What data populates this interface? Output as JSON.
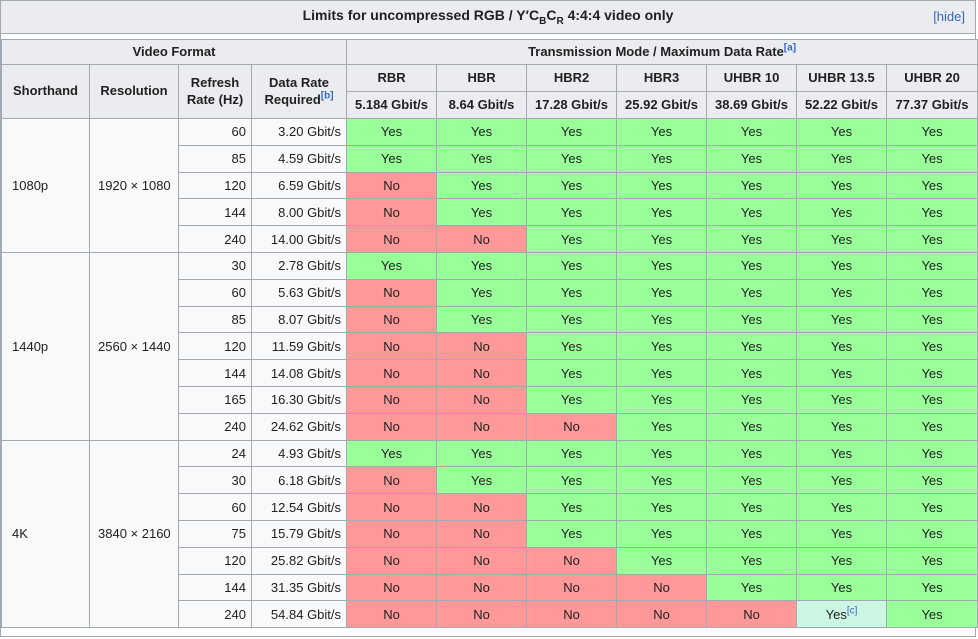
{
  "title": {
    "text_pre": "Limits for uncompressed RGB / Y′C",
    "sub_b": "B",
    "text_mid": "C",
    "sub_r": "R",
    "text_post": " 4:4:4 video only",
    "hide_label": "[hide]"
  },
  "header": {
    "video_format_label": "Video Format",
    "transmission_label": "Transmission Mode / Maximum Data Rate",
    "transmission_footnote": "[a]",
    "shorthand_label": "Shorthand",
    "resolution_label": "Resolution",
    "refresh_label": "Refresh Rate (Hz)",
    "data_rate_label": "Data Rate Required",
    "data_rate_footnote": "[b]",
    "modes": [
      {
        "name": "RBR",
        "max_rate": "5.184 Gbit/s"
      },
      {
        "name": "HBR",
        "max_rate": "8.64 Gbit/s"
      },
      {
        "name": "HBR2",
        "max_rate": "17.28 Gbit/s"
      },
      {
        "name": "HBR3",
        "max_rate": "25.92 Gbit/s"
      },
      {
        "name": "UHBR 10",
        "max_rate": "38.69 Gbit/s"
      },
      {
        "name": "UHBR 13.5",
        "max_rate": "52.22 Gbit/s"
      },
      {
        "name": "UHBR 20",
        "max_rate": "77.37 Gbit/s"
      }
    ]
  },
  "cell_labels": {
    "yes": "Yes",
    "no": "No",
    "footnote_c": "[c]"
  },
  "groups": [
    {
      "shorthand": "1080p",
      "resolution": "1920 × 1080",
      "rows": [
        {
          "refresh": "60",
          "required": "3.20 Gbit/s",
          "support": [
            "yes",
            "yes",
            "yes",
            "yes",
            "yes",
            "yes",
            "yes"
          ]
        },
        {
          "refresh": "85",
          "required": "4.59 Gbit/s",
          "support": [
            "yes",
            "yes",
            "yes",
            "yes",
            "yes",
            "yes",
            "yes"
          ]
        },
        {
          "refresh": "120",
          "required": "6.59 Gbit/s",
          "support": [
            "no",
            "yes",
            "yes",
            "yes",
            "yes",
            "yes",
            "yes"
          ]
        },
        {
          "refresh": "144",
          "required": "8.00 Gbit/s",
          "support": [
            "no",
            "yes",
            "yes",
            "yes",
            "yes",
            "yes",
            "yes"
          ]
        },
        {
          "refresh": "240",
          "required": "14.00 Gbit/s",
          "support": [
            "no",
            "no",
            "yes",
            "yes",
            "yes",
            "yes",
            "yes"
          ]
        }
      ]
    },
    {
      "shorthand": "1440p",
      "resolution": "2560 × 1440",
      "rows": [
        {
          "refresh": "30",
          "required": "2.78 Gbit/s",
          "support": [
            "yes",
            "yes",
            "yes",
            "yes",
            "yes",
            "yes",
            "yes"
          ]
        },
        {
          "refresh": "60",
          "required": "5.63 Gbit/s",
          "support": [
            "no",
            "yes",
            "yes",
            "yes",
            "yes",
            "yes",
            "yes"
          ]
        },
        {
          "refresh": "85",
          "required": "8.07 Gbit/s",
          "support": [
            "no",
            "yes",
            "yes",
            "yes",
            "yes",
            "yes",
            "yes"
          ]
        },
        {
          "refresh": "120",
          "required": "11.59 Gbit/s",
          "support": [
            "no",
            "no",
            "yes",
            "yes",
            "yes",
            "yes",
            "yes"
          ]
        },
        {
          "refresh": "144",
          "required": "14.08 Gbit/s",
          "support": [
            "no",
            "no",
            "yes",
            "yes",
            "yes",
            "yes",
            "yes"
          ]
        },
        {
          "refresh": "165",
          "required": "16.30 Gbit/s",
          "support": [
            "no",
            "no",
            "yes",
            "yes",
            "yes",
            "yes",
            "yes"
          ]
        },
        {
          "refresh": "240",
          "required": "24.62 Gbit/s",
          "support": [
            "no",
            "no",
            "no",
            "yes",
            "yes",
            "yes",
            "yes"
          ]
        }
      ]
    },
    {
      "shorthand": "4K",
      "resolution": "3840 × 2160",
      "rows": [
        {
          "refresh": "24",
          "required": "4.93 Gbit/s",
          "support": [
            "yes",
            "yes",
            "yes",
            "yes",
            "yes",
            "yes",
            "yes"
          ]
        },
        {
          "refresh": "30",
          "required": "6.18 Gbit/s",
          "support": [
            "no",
            "yes",
            "yes",
            "yes",
            "yes",
            "yes",
            "yes"
          ]
        },
        {
          "refresh": "60",
          "required": "12.54 Gbit/s",
          "support": [
            "no",
            "no",
            "yes",
            "yes",
            "yes",
            "yes",
            "yes"
          ]
        },
        {
          "refresh": "75",
          "required": "15.79 Gbit/s",
          "support": [
            "no",
            "no",
            "yes",
            "yes",
            "yes",
            "yes",
            "yes"
          ]
        },
        {
          "refresh": "120",
          "required": "25.82 Gbit/s",
          "support": [
            "no",
            "no",
            "no",
            "yes",
            "yes",
            "yes",
            "yes"
          ]
        },
        {
          "refresh": "144",
          "required": "31.35 Gbit/s",
          "support": [
            "no",
            "no",
            "no",
            "no",
            "yes",
            "yes",
            "yes"
          ]
        },
        {
          "refresh": "240",
          "required": "54.84 Gbit/s",
          "support": [
            "no",
            "no",
            "no",
            "no",
            "no",
            "yes_c",
            "yes"
          ]
        }
      ]
    }
  ],
  "colors": {
    "yes_bg": "#99FF99",
    "no_bg": "#FF9999",
    "partial_bg": "#CCF6E4",
    "header_bg": "#EAECF0",
    "cell_bg": "#F8F9FA",
    "border": "#A2A9B1",
    "link": "#3366CC",
    "text": "#202122"
  }
}
